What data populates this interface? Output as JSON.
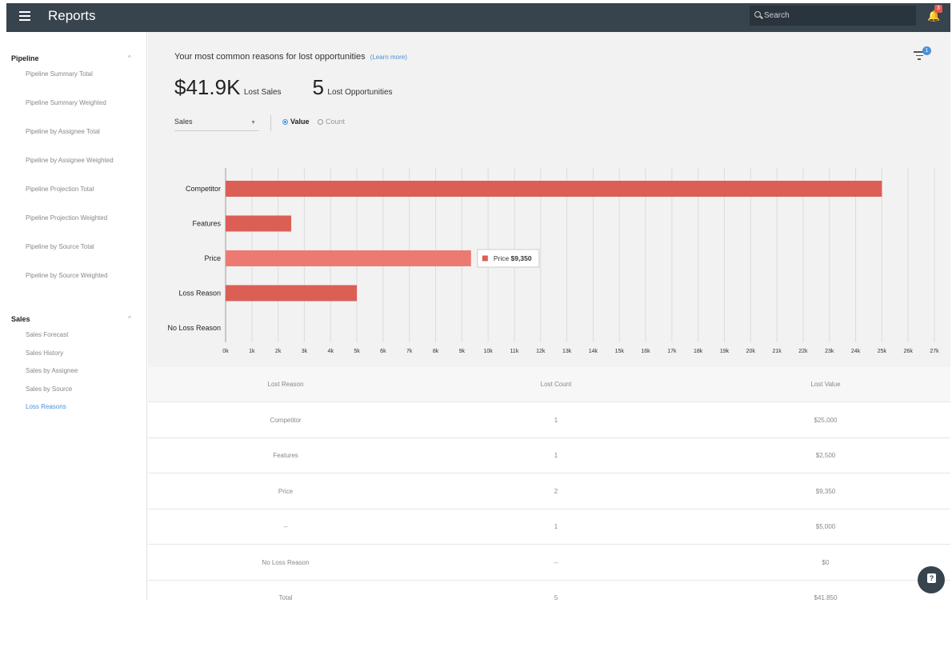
{
  "header": {
    "title": "Reports",
    "search_placeholder": "Search",
    "notification_count": "3"
  },
  "sidebar": {
    "sections": [
      {
        "title": "Pipeline",
        "items": [
          {
            "label": "Pipeline Summary Total"
          },
          {
            "label": "Pipeline Summary Weighted"
          },
          {
            "label": "Pipeline by Assignee Total"
          },
          {
            "label": "Pipeline by Assignee Weighted"
          },
          {
            "label": "Pipeline Projection Total"
          },
          {
            "label": "Pipeline Projection Weighted"
          },
          {
            "label": "Pipeline by Source Total"
          },
          {
            "label": "Pipeline by Source Weighted"
          }
        ]
      },
      {
        "title": "Sales",
        "items": [
          {
            "label": "Sales Forecast"
          },
          {
            "label": "Sales History"
          },
          {
            "label": "Sales by Assignee"
          },
          {
            "label": "Sales by Source"
          },
          {
            "label": "Loss Reasons",
            "active": true
          }
        ]
      }
    ]
  },
  "main": {
    "headline": "Your most common reasons for lost opportunities",
    "learn_more": "(Learn more)",
    "filter_count": "1",
    "metrics": {
      "lost_sales_value": "$41.9K",
      "lost_sales_label": "Lost Sales",
      "lost_opps_value": "5",
      "lost_opps_label": "Lost Opportunities"
    },
    "controls": {
      "select_value": "Sales",
      "radio_value": "Value",
      "radio_count": "Count",
      "selected": "Value"
    }
  },
  "chart_data": {
    "type": "bar",
    "orientation": "horizontal",
    "categories": [
      "Competitor",
      "Features",
      "Price",
      "Loss Reason",
      "No Loss Reason"
    ],
    "values": [
      25000,
      2500,
      9350,
      5000,
      0
    ],
    "xlim": [
      0,
      27000
    ],
    "x_ticks": [
      "0k",
      "1k",
      "2k",
      "3k",
      "4k",
      "5k",
      "6k",
      "7k",
      "8k",
      "9k",
      "10k",
      "11k",
      "12k",
      "13k",
      "14k",
      "15k",
      "16k",
      "17k",
      "18k",
      "19k",
      "20k",
      "21k",
      "22k",
      "23k",
      "24k",
      "25k",
      "26k",
      "27k"
    ],
    "tooltip": {
      "category": "Price",
      "label": "Price",
      "value": "$9,350"
    },
    "bar_color": "#dc5f55",
    "highlight_color": "#ec7a70",
    "grid": true
  },
  "table": {
    "headers": [
      "Lost Reason",
      "Lost Count",
      "Lost Value"
    ],
    "rows": [
      [
        "Competitor",
        "1",
        "$25,000"
      ],
      [
        "Features",
        "1",
        "$2,500"
      ],
      [
        "Price",
        "2",
        "$9,350"
      ],
      [
        "--",
        "1",
        "$5,000"
      ],
      [
        "No Loss Reason",
        "--",
        "$0"
      ],
      [
        "Total",
        "5",
        "$41,850"
      ]
    ]
  }
}
